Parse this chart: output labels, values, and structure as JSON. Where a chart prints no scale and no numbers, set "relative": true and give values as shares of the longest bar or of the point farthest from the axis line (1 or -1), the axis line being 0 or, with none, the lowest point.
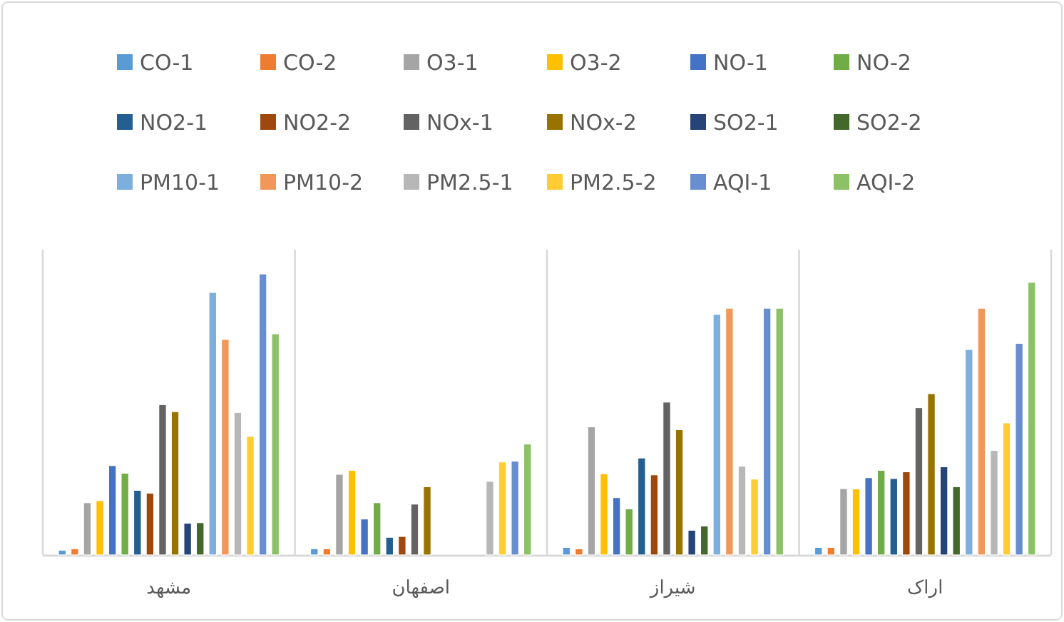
{
  "chart_data": {
    "type": "bar",
    "relative": true,
    "grid": "x",
    "legend": "top",
    "categories": [
      "مشهد",
      "اصفهان",
      "شیراز",
      "اراک"
    ],
    "series": [
      {
        "name": "CO-1",
        "color": "#5b9bd5",
        "values": [
          0.017,
          0.022,
          0.027,
          0.027
        ]
      },
      {
        "name": "CO-2",
        "color": "#ed7d31",
        "values": [
          0.022,
          0.022,
          0.022,
          0.027
        ]
      },
      {
        "name": "O3-1",
        "color": "#a5a5a5",
        "values": [
          0.186,
          0.287,
          0.456,
          0.236
        ]
      },
      {
        "name": "O3-2",
        "color": "#ffc000",
        "values": [
          0.193,
          0.301,
          0.289,
          0.235
        ]
      },
      {
        "name": "NO-1",
        "color": "#4472c4",
        "values": [
          0.318,
          0.128,
          0.204,
          0.275
        ]
      },
      {
        "name": "NO-2",
        "color": "#70ad47",
        "values": [
          0.291,
          0.186,
          0.164,
          0.301
        ]
      },
      {
        "name": "NO2-1",
        "color": "#255e91",
        "values": [
          0.23,
          0.063,
          0.345,
          0.272
        ]
      },
      {
        "name": "NO2-2",
        "color": "#9e480e",
        "values": [
          0.22,
          0.066,
          0.285,
          0.296
        ]
      },
      {
        "name": "NOx-1",
        "color": "#636363",
        "values": [
          0.535,
          0.181,
          0.544,
          0.524
        ]
      },
      {
        "name": "NOx-2",
        "color": "#997300",
        "values": [
          0.51,
          0.243,
          0.446,
          0.574
        ]
      },
      {
        "name": "SO2-1",
        "color": "#264478",
        "values": [
          0.113,
          null,
          0.088,
          0.314
        ]
      },
      {
        "name": "SO2-2",
        "color": "#43682b",
        "values": [
          0.115,
          null,
          0.103,
          0.243
        ]
      },
      {
        "name": "PM10-1",
        "color": "#7cafdd",
        "values": [
          0.934,
          null,
          0.856,
          0.731
        ]
      },
      {
        "name": "PM10-2",
        "color": "#f1975a",
        "values": [
          0.767,
          null,
          0.878,
          0.878
        ]
      },
      {
        "name": "PM2.5-1",
        "color": "#b7b7b7",
        "values": [
          0.507,
          0.262,
          0.316,
          0.372
        ]
      },
      {
        "name": "PM2.5-2",
        "color": "#ffcd33",
        "values": [
          0.422,
          0.331,
          0.27,
          0.47
        ]
      },
      {
        "name": "AQI-1",
        "color": "#698ed0",
        "values": [
          1,
          0.334,
          0.878,
          0.753
        ]
      },
      {
        "name": "AQI-2",
        "color": "#8cc168",
        "values": [
          0.787,
          0.395,
          0.878,
          0.97
        ]
      }
    ]
  }
}
